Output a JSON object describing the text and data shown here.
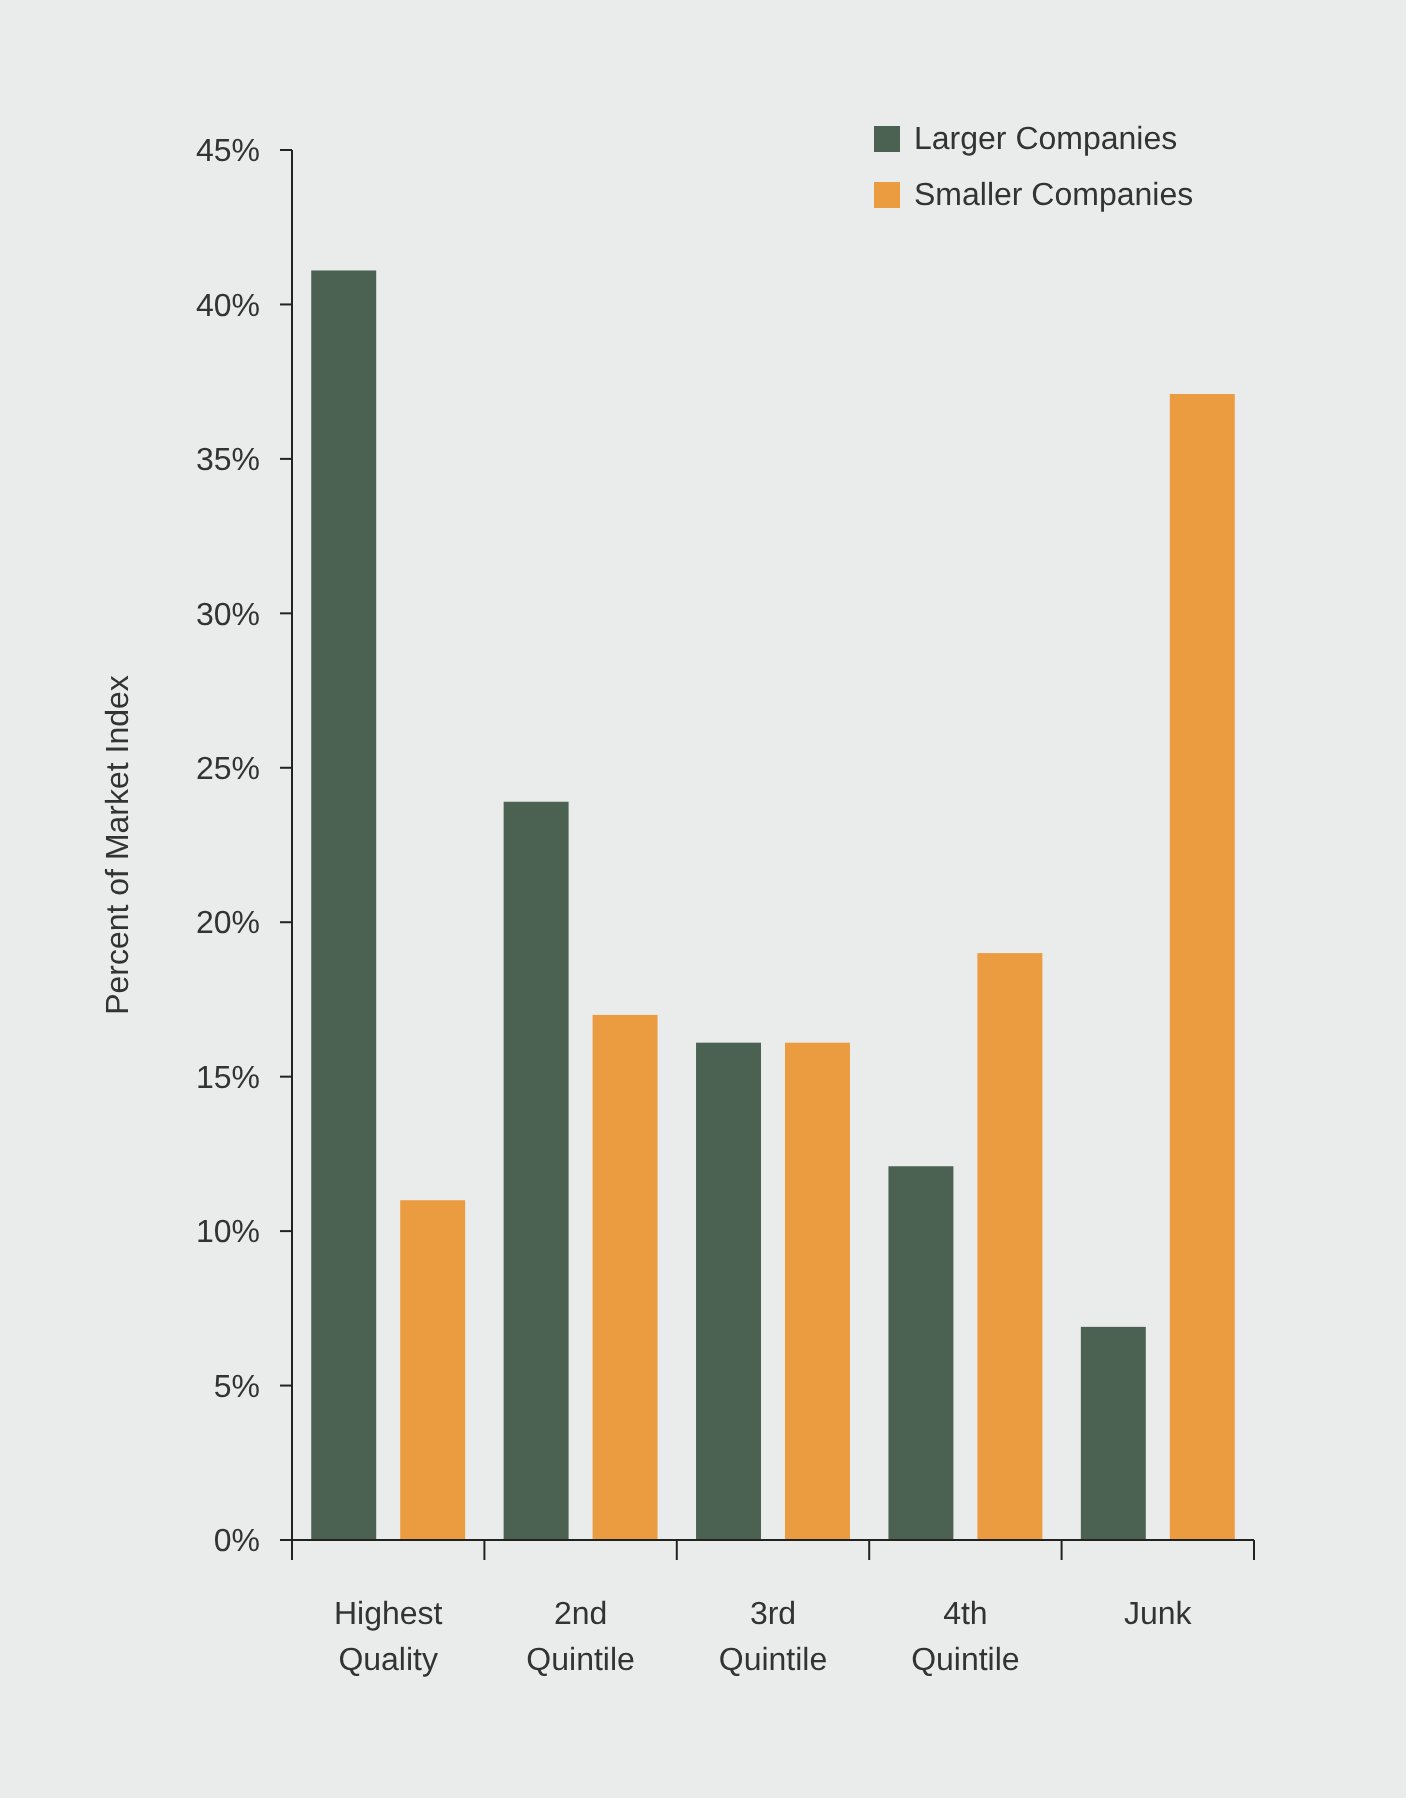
{
  "chart_data": {
    "type": "bar",
    "ylabel": "Percent of Market Index",
    "categories": [
      "Highest Quality",
      "2nd Quintile",
      "3rd Quintile",
      "4th Quintile",
      "Junk"
    ],
    "series": [
      {
        "name": "Larger Companies",
        "color": "#4b6151",
        "values": [
          41.1,
          23.9,
          16.1,
          12.1,
          6.9
        ]
      },
      {
        "name": "Smaller Companies",
        "color": "#eb9b40",
        "values": [
          11,
          17,
          16.1,
          19,
          37.1
        ]
      }
    ],
    "ylim": [
      0,
      45
    ],
    "yticks": [
      {
        "value": 0,
        "label": "0%"
      },
      {
        "value": 5,
        "label": "5%"
      },
      {
        "value": 10,
        "label": "10%"
      },
      {
        "value": 15,
        "label": "15%"
      },
      {
        "value": 20,
        "label": "20%"
      },
      {
        "value": 25,
        "label": "25%"
      },
      {
        "value": 30,
        "label": "30%"
      },
      {
        "value": 35,
        "label": "35%"
      },
      {
        "value": 40,
        "label": "40%"
      },
      {
        "value": 45,
        "label": "45%"
      }
    ],
    "grid": false,
    "legend": "top right"
  }
}
